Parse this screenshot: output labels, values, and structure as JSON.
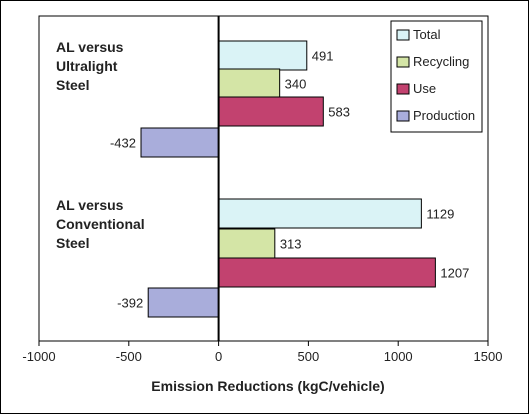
{
  "chart_data": {
    "type": "bar",
    "orientation": "horizontal",
    "xlabel": "Emission Reductions (kgC/vehicle)",
    "ylabel": "",
    "xlim": [
      -1000,
      1500
    ],
    "xticks": [
      -1000,
      -500,
      0,
      500,
      1000,
      1500
    ],
    "grid": false,
    "legend_position": "top-right",
    "groups": [
      {
        "label": [
          "AL versus",
          "Ultralight",
          "Steel"
        ]
      },
      {
        "label": [
          "AL versus",
          "Conventional",
          "Steel"
        ]
      }
    ],
    "series": [
      {
        "name": "Total",
        "color": "#daf3f6",
        "values": [
          491,
          1129
        ]
      },
      {
        "name": "Recycling",
        "color": "#d4e5a6",
        "values": [
          340,
          313
        ]
      },
      {
        "name": "Use",
        "color": "#c2426f",
        "values": [
          583,
          1207
        ]
      },
      {
        "name": "Production",
        "color": "#a9addb",
        "values": [
          -432,
          -392
        ]
      }
    ]
  }
}
